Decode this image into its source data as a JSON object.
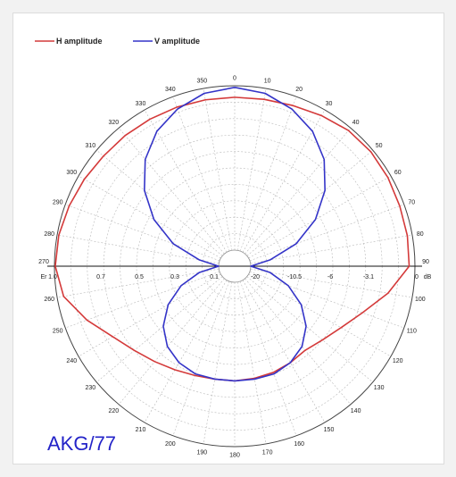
{
  "chart_data": {
    "type": "polar-line",
    "brand_label": "AKG/77",
    "series": [
      {
        "name": "H amplitude",
        "color": "#d43a3a",
        "angles": [
          0,
          10,
          20,
          30,
          40,
          50,
          60,
          70,
          80,
          90,
          100,
          110,
          120,
          130,
          140,
          150,
          160,
          170,
          180,
          190,
          200,
          210,
          220,
          230,
          240,
          250,
          260,
          270,
          280,
          290,
          300,
          310,
          320,
          330,
          340,
          350
        ],
        "values": [
          0.93,
          0.933,
          0.942,
          0.96,
          0.98,
          0.985,
          0.98,
          0.972,
          0.97,
          0.965,
          0.85,
          0.73,
          0.65,
          0.6,
          0.57,
          0.58,
          0.59,
          0.595,
          0.6,
          0.6,
          0.61,
          0.63,
          0.66,
          0.7,
          0.76,
          0.86,
          0.96,
          0.995,
          0.99,
          0.975,
          0.96,
          0.945,
          0.94,
          0.935,
          0.932,
          0.93
        ]
      },
      {
        "name": "V amplitude",
        "color": "#3434c8",
        "angles": [
          0,
          10,
          20,
          30,
          40,
          50,
          60,
          70,
          80,
          90,
          100,
          110,
          120,
          130,
          140,
          150,
          160,
          170,
          180,
          190,
          200,
          210,
          220,
          230,
          240,
          250,
          260,
          270,
          280,
          290,
          300,
          310,
          320,
          330,
          340,
          350
        ],
        "values": [
          0.99,
          0.97,
          0.92,
          0.85,
          0.75,
          0.62,
          0.47,
          0.3,
          0.12,
          0.0,
          0.12,
          0.25,
          0.37,
          0.47,
          0.54,
          0.58,
          0.6,
          0.6,
          0.6,
          0.6,
          0.6,
          0.58,
          0.54,
          0.47,
          0.37,
          0.25,
          0.12,
          0.0,
          0.12,
          0.3,
          0.47,
          0.62,
          0.75,
          0.85,
          0.92,
          0.97
        ]
      }
    ],
    "angle_ticks": [
      0,
      10,
      20,
      30,
      40,
      50,
      60,
      70,
      80,
      90,
      100,
      110,
      120,
      130,
      140,
      150,
      160,
      170,
      180,
      190,
      200,
      210,
      220,
      230,
      240,
      250,
      260,
      270,
      280,
      290,
      300,
      310,
      320,
      330,
      340,
      350
    ],
    "left_scale_label": "Er",
    "left_scale": [
      "1.0",
      "0.7",
      "0.5",
      "0.3",
      "0.1"
    ],
    "right_scale_label": "dB",
    "right_scale": [
      "-20",
      "-10.5",
      "-6",
      "-3.1",
      "0"
    ],
    "rlim": [
      0,
      1
    ],
    "grid": true,
    "legend_position": "top-left"
  }
}
